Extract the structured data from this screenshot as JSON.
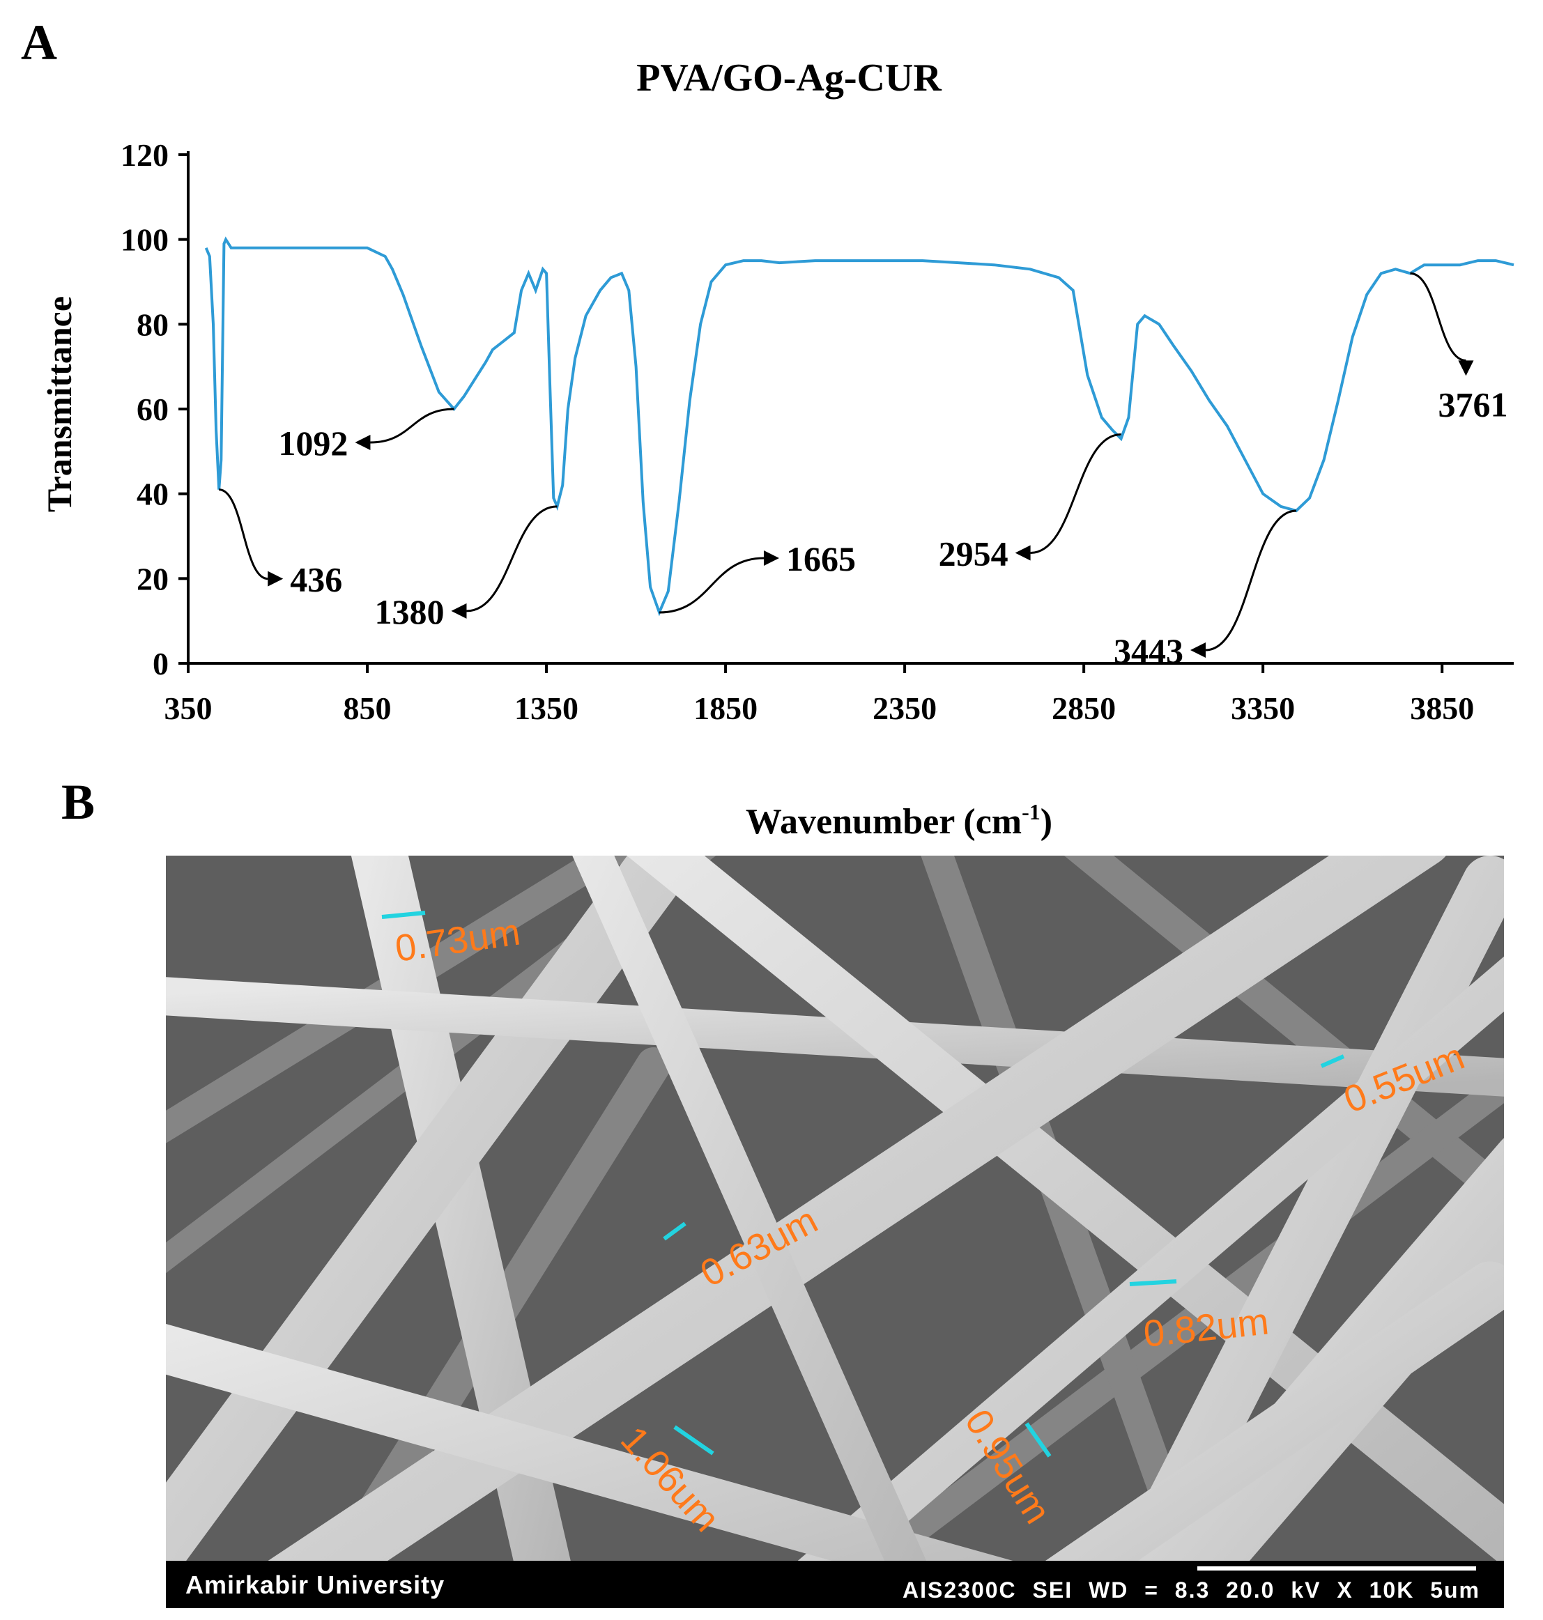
{
  "panels": {
    "a_label": "A",
    "b_label": "B"
  },
  "chart_data": {
    "type": "line",
    "title": "PVA/GO-Ag-CUR",
    "xlabel": "Wavenumber (cm-1)",
    "xlabel_main": "Wavenumber (cm",
    "xlabel_sup": "-1",
    "xlabel_end": ")",
    "ylabel": "Transmittance",
    "xlim": [
      350,
      4050
    ],
    "ylim": [
      0,
      120
    ],
    "x_ticks": [
      350,
      850,
      1350,
      1850,
      2350,
      2850,
      3350,
      3850
    ],
    "y_ticks": [
      0,
      20,
      40,
      60,
      80,
      100,
      120
    ],
    "line_color": "#2e9bd6",
    "grid": false,
    "legend": "none",
    "series": [
      {
        "x": [
          400,
          410,
          420,
          428,
          436,
          442,
          450,
          455,
          470,
          500,
          600,
          700,
          800,
          850,
          900,
          920,
          950,
          1000,
          1050,
          1092,
          1120,
          1150,
          1180,
          1200,
          1230,
          1260,
          1280,
          1300,
          1320,
          1340,
          1350,
          1360,
          1370,
          1380,
          1395,
          1410,
          1430,
          1460,
          1500,
          1530,
          1560,
          1580,
          1600,
          1620,
          1640,
          1665,
          1690,
          1720,
          1750,
          1780,
          1810,
          1850,
          1900,
          1950,
          2000,
          2100,
          2200,
          2300,
          2400,
          2500,
          2600,
          2700,
          2780,
          2820,
          2840,
          2860,
          2880,
          2900,
          2930,
          2954,
          2975,
          3000,
          3020,
          3060,
          3100,
          3150,
          3200,
          3250,
          3300,
          3350,
          3400,
          3443,
          3480,
          3520,
          3560,
          3600,
          3640,
          3680,
          3720,
          3761,
          3800,
          3850,
          3900,
          3950,
          4000,
          4050
        ],
        "y": [
          98,
          96,
          80,
          55,
          41,
          48,
          99,
          100,
          98,
          98,
          98,
          98,
          98,
          98,
          96,
          93,
          87,
          75,
          64,
          60,
          63,
          67,
          71,
          74,
          76,
          78,
          88,
          92,
          88,
          93,
          92,
          65,
          39,
          37,
          42,
          60,
          72,
          82,
          88,
          91,
          92,
          88,
          70,
          38,
          18,
          12,
          17,
          38,
          62,
          80,
          90,
          94,
          95,
          95,
          94.5,
          95,
          95,
          95,
          95,
          94.5,
          94,
          93,
          91,
          88,
          78,
          68,
          63,
          58,
          55,
          53,
          58,
          80,
          82,
          80,
          75,
          69,
          62,
          56,
          48,
          40,
          37,
          36,
          39,
          48,
          62,
          77,
          87,
          92,
          93,
          92,
          94,
          94,
          94,
          95,
          95,
          94
        ]
      }
    ],
    "annotations": [
      {
        "text": "436",
        "x": 436,
        "y": 41
      },
      {
        "text": "1092",
        "x": 1092,
        "y": 60
      },
      {
        "text": "1380",
        "x": 1380,
        "y": 37
      },
      {
        "text": "1665",
        "x": 1665,
        "y": 12
      },
      {
        "text": "2954",
        "x": 2954,
        "y": 54
      },
      {
        "text": "3443",
        "x": 3443,
        "y": 36
      },
      {
        "text": "3761",
        "x": 3761,
        "y": 92
      }
    ]
  },
  "sem": {
    "measurements": [
      "0.73um",
      "0.55um",
      "0.63um",
      "0.82um",
      "1.06um",
      "0.95um"
    ],
    "footer_left": "Amirkabir University",
    "footer_right": "AIS2300C  SEI  WD = 8.3  20.0 kV  X 10K    5um",
    "label_color": "#ff7a1a",
    "marker_color": "#22d3e0"
  }
}
